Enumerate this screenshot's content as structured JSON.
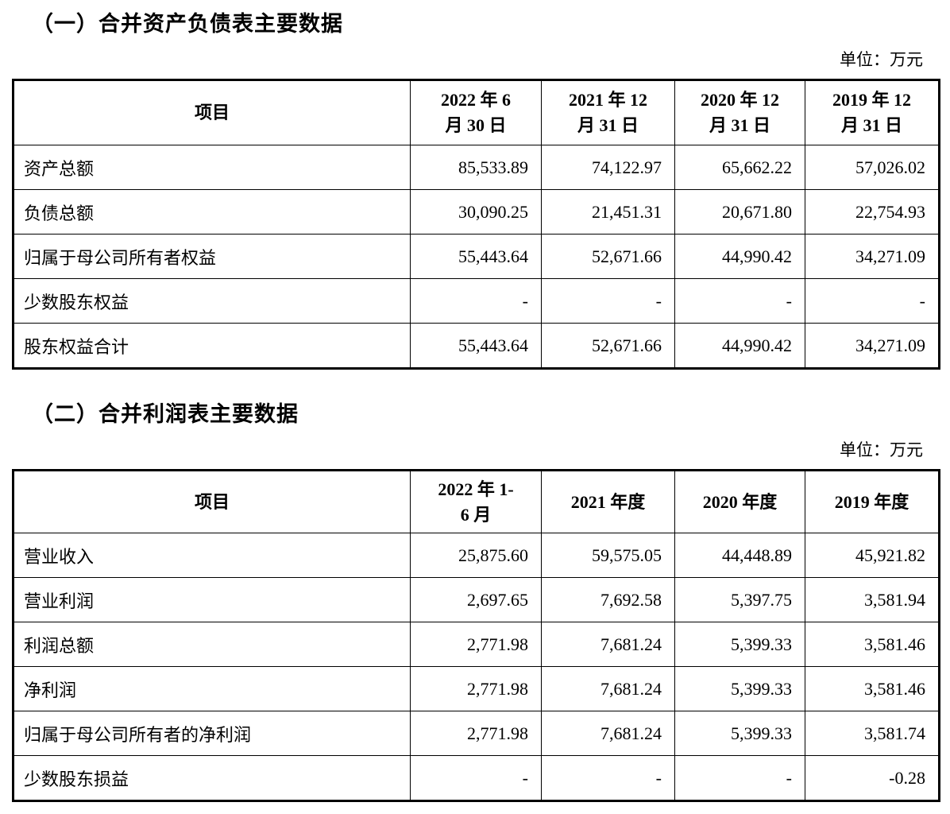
{
  "page": {
    "background": "#ffffff",
    "text_color": "#000000",
    "border_color": "#000000"
  },
  "section1": {
    "title": "（一）合并资产负债表主要数据",
    "unit_label": "单位：万元",
    "table": {
      "item_header": "项目",
      "columns": [
        "2022 年 6\n月 30 日",
        "2021 年 12\n月 31 日",
        "2020 年 12\n月 31 日",
        "2019 年 12\n月 31 日"
      ],
      "rows": [
        {
          "label": "资产总额",
          "values": [
            "85,533.89",
            "74,122.97",
            "65,662.22",
            "57,026.02"
          ]
        },
        {
          "label": "负债总额",
          "values": [
            "30,090.25",
            "21,451.31",
            "20,671.80",
            "22,754.93"
          ]
        },
        {
          "label": "归属于母公司所有者权益",
          "values": [
            "55,443.64",
            "52,671.66",
            "44,990.42",
            "34,271.09"
          ]
        },
        {
          "label": "少数股东权益",
          "values": [
            "-",
            "-",
            "-",
            "-"
          ]
        },
        {
          "label": "股东权益合计",
          "values": [
            "55,443.64",
            "52,671.66",
            "44,990.42",
            "34,271.09"
          ]
        }
      ]
    }
  },
  "section2": {
    "title": "（二）合并利润表主要数据",
    "unit_label": "单位：万元",
    "table": {
      "item_header": "项目",
      "columns": [
        "2022 年 1-\n6 月",
        "2021 年度",
        "2020 年度",
        "2019 年度"
      ],
      "rows": [
        {
          "label": "营业收入",
          "values": [
            "25,875.60",
            "59,575.05",
            "44,448.89",
            "45,921.82"
          ]
        },
        {
          "label": "营业利润",
          "values": [
            "2,697.65",
            "7,692.58",
            "5,397.75",
            "3,581.94"
          ]
        },
        {
          "label": "利润总额",
          "values": [
            "2,771.98",
            "7,681.24",
            "5,399.33",
            "3,581.46"
          ]
        },
        {
          "label": "净利润",
          "values": [
            "2,771.98",
            "7,681.24",
            "5,399.33",
            "3,581.46"
          ]
        },
        {
          "label": "归属于母公司所有者的净利润",
          "values": [
            "2,771.98",
            "7,681.24",
            "5,399.33",
            "3,581.74"
          ]
        },
        {
          "label": "少数股东损益",
          "values": [
            "-",
            "-",
            "-",
            "-0.28"
          ]
        }
      ]
    }
  }
}
